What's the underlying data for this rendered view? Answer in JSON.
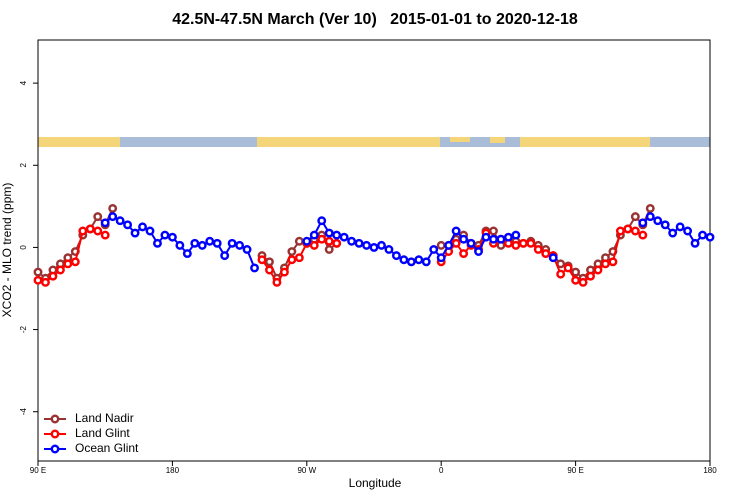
{
  "chart_data": {
    "type": "line",
    "title": "42.5N-47.5N March (Ver 10)   2015-01-01 to 2020-12-18",
    "x_label": "Longitude",
    "y_label": "XCO2 - MLO trend (ppm)",
    "xlim": [
      90,
      540
    ],
    "ylim": [
      -5.2,
      5.05
    ],
    "xticks": [
      {
        "value": 90,
        "label": "90 E"
      },
      180,
      {
        "value": 270,
        "label": "90 W"
      },
      {
        "value": 360,
        "label": "0"
      },
      {
        "value": 450,
        "label": "90 E"
      },
      {
        "value": 540,
        "label": "180"
      }
    ],
    "yticks": [
      -4,
      -2,
      0,
      2,
      4
    ],
    "legend": "bottomleft",
    "x": [
      90,
      95,
      100,
      105,
      110,
      115,
      120,
      125,
      130,
      135,
      140,
      145,
      150,
      155,
      160,
      165,
      170,
      175,
      180,
      185,
      190,
      195,
      200,
      205,
      210,
      215,
      220,
      225,
      230,
      235,
      240,
      245,
      250,
      255,
      260,
      265,
      270,
      275,
      280,
      285,
      290,
      295,
      300,
      305,
      310,
      315,
      320,
      325,
      330,
      335,
      340,
      345,
      350,
      355,
      360,
      365,
      370,
      375,
      380,
      385,
      390,
      395,
      400,
      405,
      410,
      415,
      420,
      425,
      430,
      435,
      440,
      445,
      450,
      455,
      460,
      465,
      470,
      475,
      480,
      485,
      490,
      495,
      500,
      505,
      510,
      515,
      520,
      525,
      530,
      535,
      540
    ],
    "series": [
      {
        "name": "Land Nadir",
        "color": "#993333",
        "values": [
          -0.6,
          -0.75,
          -0.55,
          -0.4,
          -0.25,
          -0.1,
          0.3,
          0.45,
          0.75,
          0.55,
          0.95,
          null,
          null,
          null,
          null,
          null,
          null,
          null,
          null,
          null,
          null,
          null,
          null,
          null,
          null,
          null,
          null,
          null,
          null,
          null,
          -0.2,
          -0.35,
          -0.75,
          -0.5,
          -0.1,
          0.15,
          0.1,
          0.2,
          0.3,
          -0.05,
          0.1,
          null,
          null,
          null,
          null,
          null,
          null,
          null,
          null,
          null,
          null,
          null,
          null,
          null,
          0.05,
          0.05,
          0.2,
          0.3,
          0.1,
          0.05,
          0.4,
          0.4,
          0.05,
          0.2,
          0.15,
          0.1,
          0.15,
          0.05,
          -0.05,
          -0.2,
          -0.4,
          -0.45,
          -0.6,
          -0.75,
          -0.55,
          -0.4,
          -0.25,
          -0.1,
          0.3,
          0.45,
          0.75,
          0.55,
          0.95,
          null,
          null,
          null,
          null,
          null,
          null,
          null,
          null
        ]
      },
      {
        "name": "Land Glint",
        "color": "#ff0000",
        "values": [
          -0.8,
          -0.85,
          -0.7,
          -0.55,
          -0.4,
          -0.35,
          0.4,
          0.45,
          0.4,
          0.3,
          null,
          null,
          null,
          null,
          null,
          null,
          null,
          null,
          null,
          null,
          null,
          null,
          null,
          null,
          null,
          null,
          null,
          null,
          null,
          null,
          -0.3,
          -0.55,
          -0.85,
          -0.6,
          -0.3,
          -0.25,
          0.1,
          0.05,
          0.2,
          0.15,
          0.1,
          null,
          null,
          null,
          null,
          null,
          null,
          null,
          null,
          null,
          null,
          null,
          null,
          null,
          -0.35,
          -0.1,
          0.1,
          -0.15,
          0.05,
          -0.05,
          0.35,
          0.1,
          0.2,
          0.1,
          0.05,
          0.1,
          0.1,
          -0.05,
          -0.15,
          -0.2,
          -0.65,
          -0.5,
          -0.8,
          -0.85,
          -0.7,
          -0.55,
          -0.4,
          -0.35,
          0.4,
          0.45,
          0.4,
          0.3,
          null,
          null,
          null,
          null,
          null,
          null,
          null,
          null,
          null
        ]
      },
      {
        "name": "Ocean Glint",
        "color": "#0000ff",
        "values": [
          null,
          null,
          null,
          null,
          null,
          null,
          null,
          null,
          null,
          0.6,
          0.75,
          0.65,
          0.55,
          0.35,
          0.5,
          0.4,
          0.1,
          0.3,
          0.25,
          0.05,
          -0.15,
          0.1,
          0.05,
          0.15,
          0.1,
          -0.2,
          0.1,
          0.05,
          -0.05,
          -0.5,
          null,
          null,
          null,
          null,
          null,
          null,
          0.15,
          0.3,
          0.65,
          0.35,
          0.3,
          0.25,
          0.15,
          0.1,
          0.05,
          0.0,
          0.05,
          -0.05,
          -0.2,
          -0.3,
          -0.35,
          -0.3,
          -0.35,
          -0.05,
          -0.25,
          0.05,
          0.4,
          0.2,
          0.1,
          -0.1,
          0.25,
          0.2,
          0.2,
          0.25,
          0.3,
          null,
          null,
          null,
          null,
          -0.25,
          null,
          null,
          null,
          null,
          null,
          null,
          null,
          null,
          null,
          null,
          null,
          0.6,
          0.75,
          0.65,
          0.55,
          0.35,
          0.5,
          0.4,
          0.1,
          0.3,
          0.25
        ]
      }
    ]
  }
}
